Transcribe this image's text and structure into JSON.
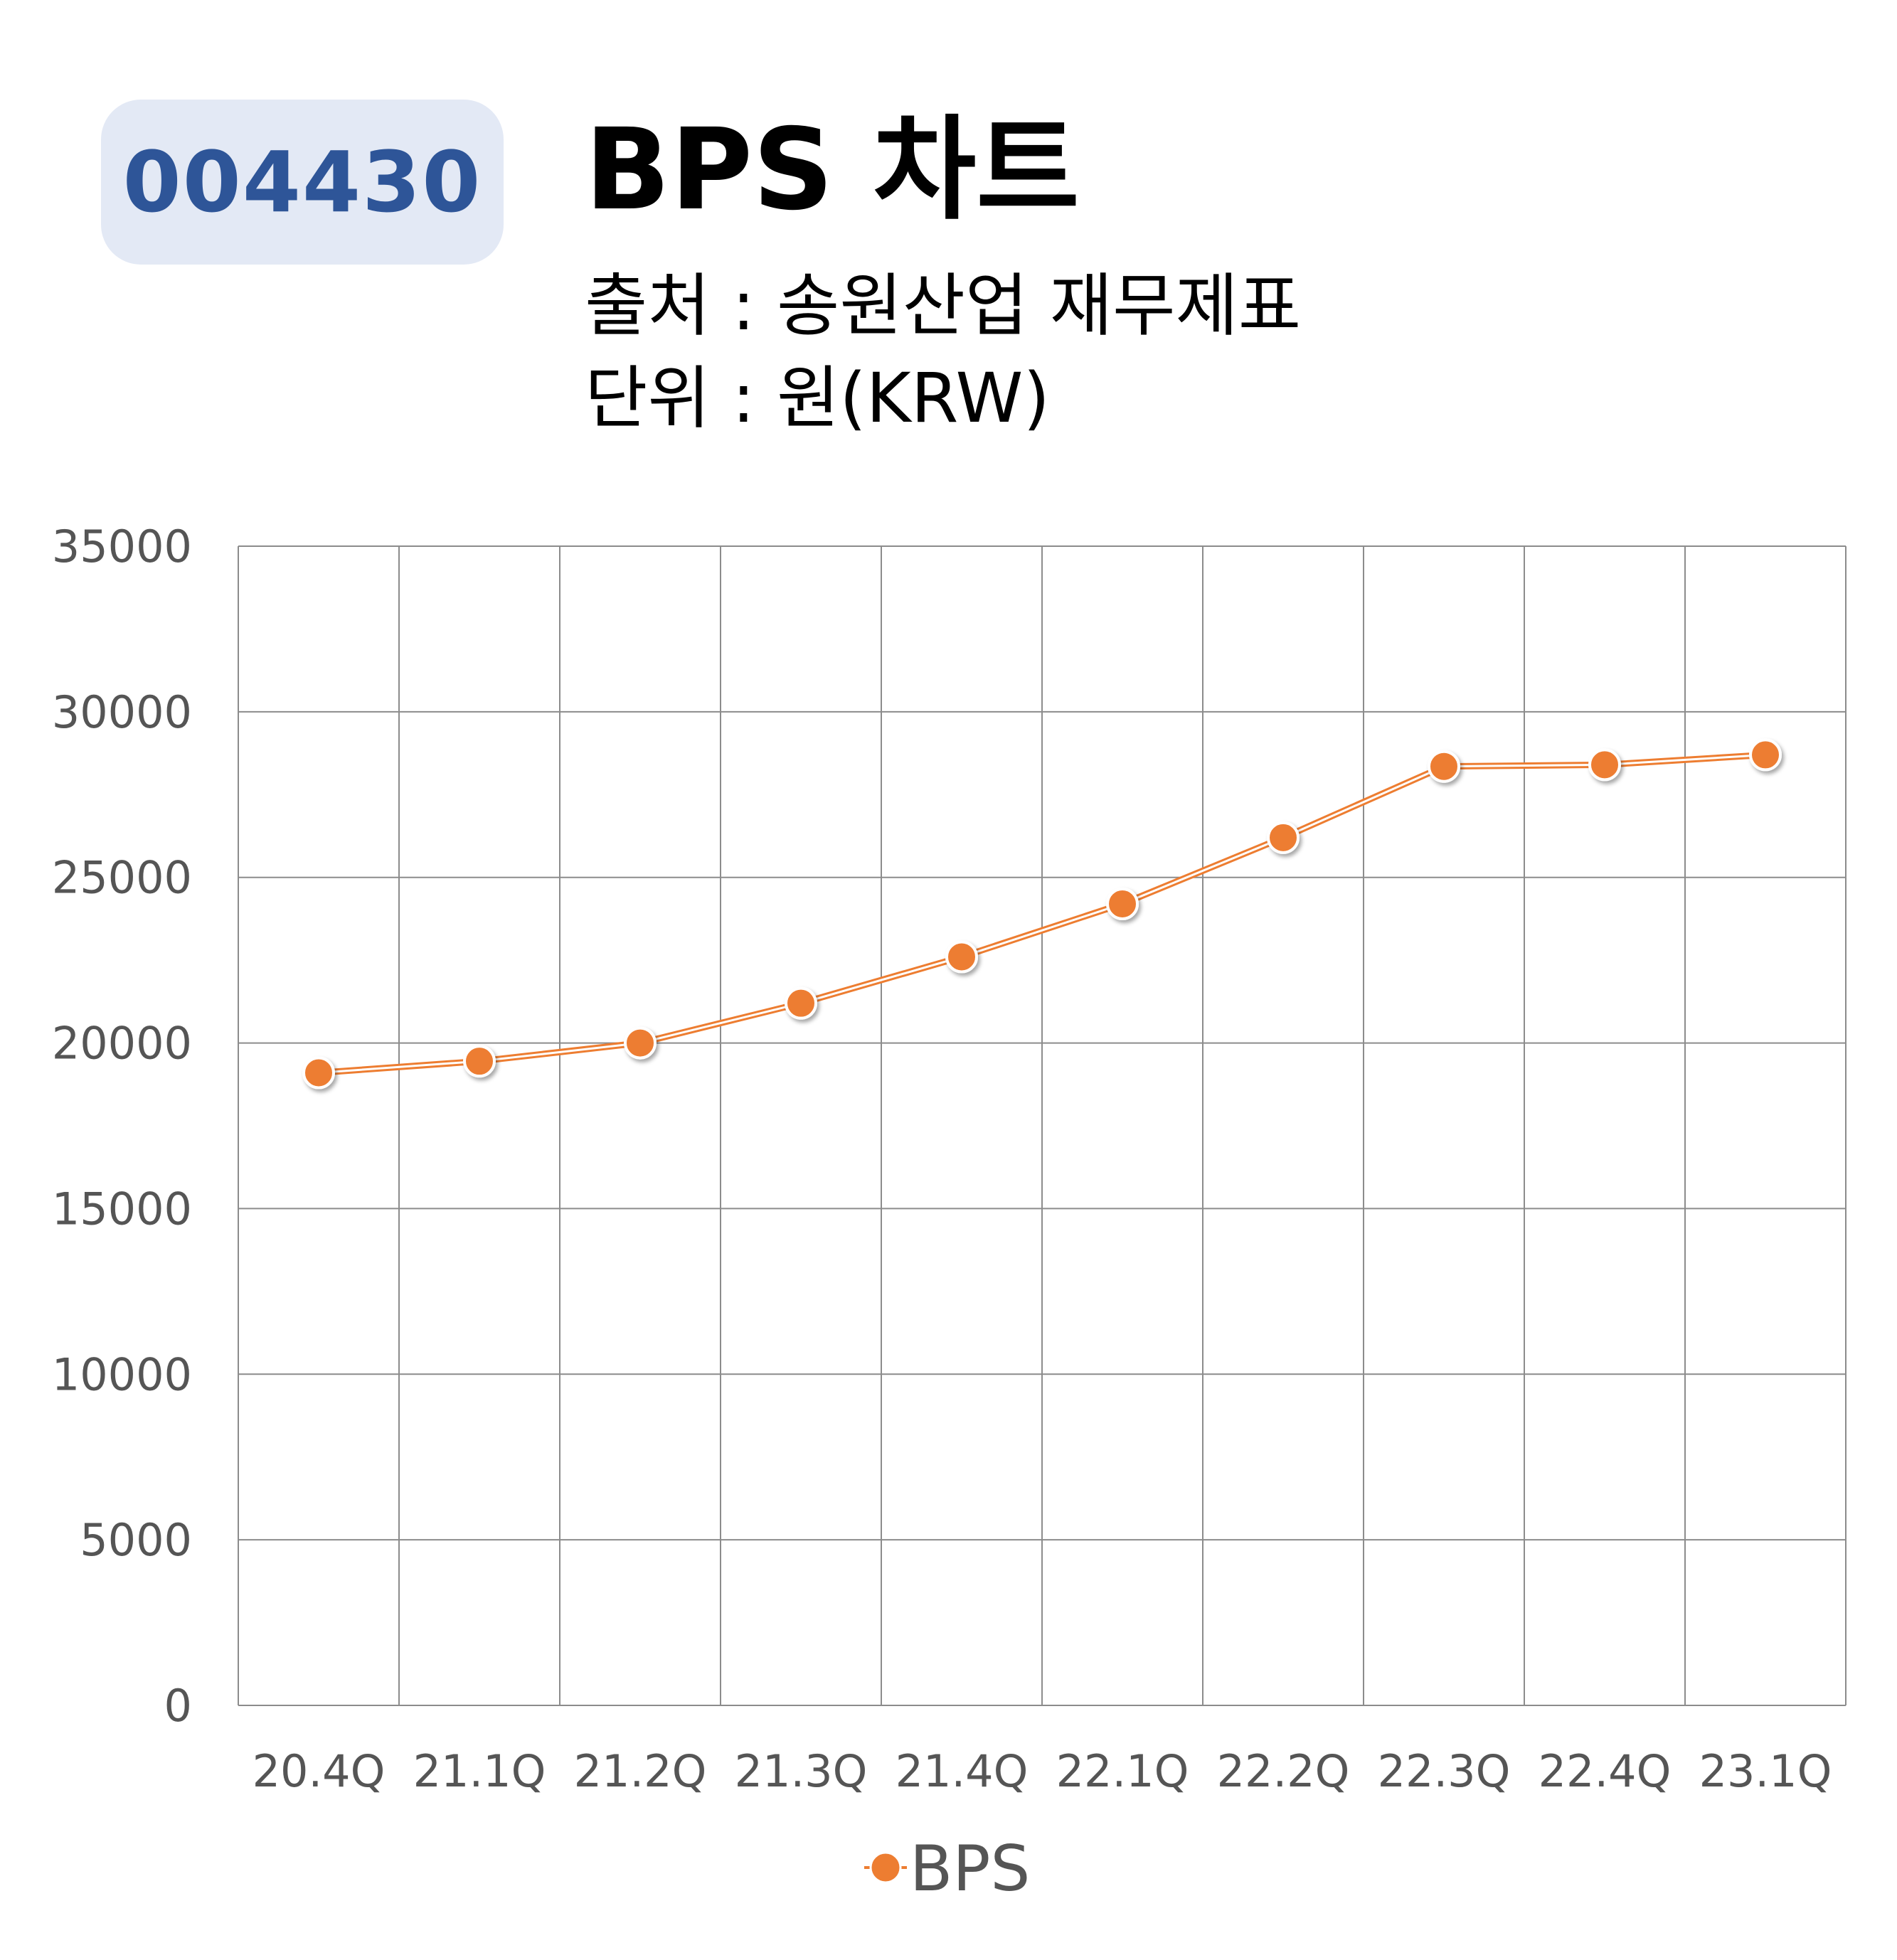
{
  "header": {
    "stock_code": "004430",
    "title": "BPS 차트",
    "source": "출처 : 송원산업 재무제표",
    "unit": "단위 : 원(KRW)"
  },
  "colors": {
    "series": "#ed7d31",
    "badge_bg": "#e3e9f5",
    "badge_text": "#2e5598",
    "grid": "#8c8c8c"
  },
  "chart_data": {
    "type": "line",
    "categories": [
      "20.4Q",
      "21.1Q",
      "21.2Q",
      "21.3Q",
      "21.4Q",
      "22.1Q",
      "22.2Q",
      "22.3Q",
      "22.4Q",
      "23.1Q"
    ],
    "series": [
      {
        "name": "BPS",
        "values": [
          19100,
          19450,
          20000,
          21200,
          22600,
          24200,
          26200,
          28350,
          28400,
          28700
        ]
      }
    ],
    "yticks": [
      "0",
      "5000",
      "10000",
      "15000",
      "20000",
      "25000",
      "30000",
      "35000"
    ],
    "ylim": [
      0,
      35000
    ],
    "grid": true,
    "legend_position": "bottom"
  }
}
